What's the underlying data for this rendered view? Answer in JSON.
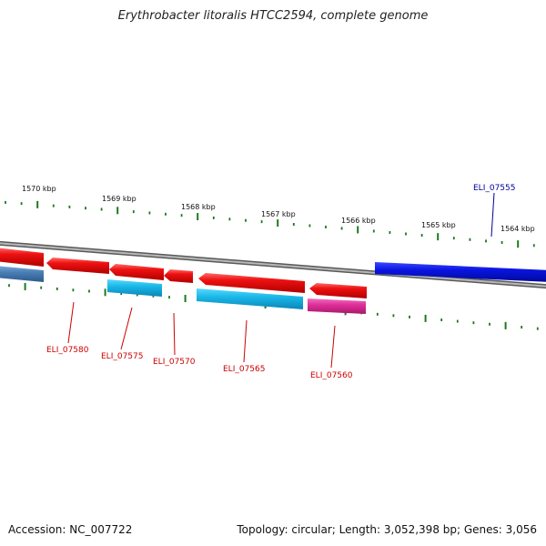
{
  "title": "Erythrobacter litoralis HTCC2594, complete genome",
  "footer": {
    "accession": "Accession: NC_007722",
    "topology": "Topology: circular; Length: 3,052,398 bp; Genes: 3,056"
  },
  "scale_labels": [
    "1570 kbp",
    "1569 kbp",
    "1568 kbp",
    "1567 kbp",
    "1566 kbp",
    "1565 kbp",
    "1564 kbp"
  ],
  "genes": [
    {
      "name": "ELI_07580",
      "color": "#cc0000"
    },
    {
      "name": "ELI_07575",
      "color": "#cc0000"
    },
    {
      "name": "ELI_07570",
      "color": "#cc0000"
    },
    {
      "name": "ELI_07565",
      "color": "#cc0000"
    },
    {
      "name": "ELI_07560",
      "color": "#cc0000"
    },
    {
      "name": "ELI_07555",
      "color": "#000099"
    }
  ],
  "colors": {
    "backbone": "#8c8c8c",
    "ticks": "#1a7a1a",
    "forward_red": "#e81010",
    "cyan": "#1ab8e8",
    "magenta": "#e0309a",
    "blue": "#0a14e0",
    "steel_blue": "#4a7fb5"
  }
}
